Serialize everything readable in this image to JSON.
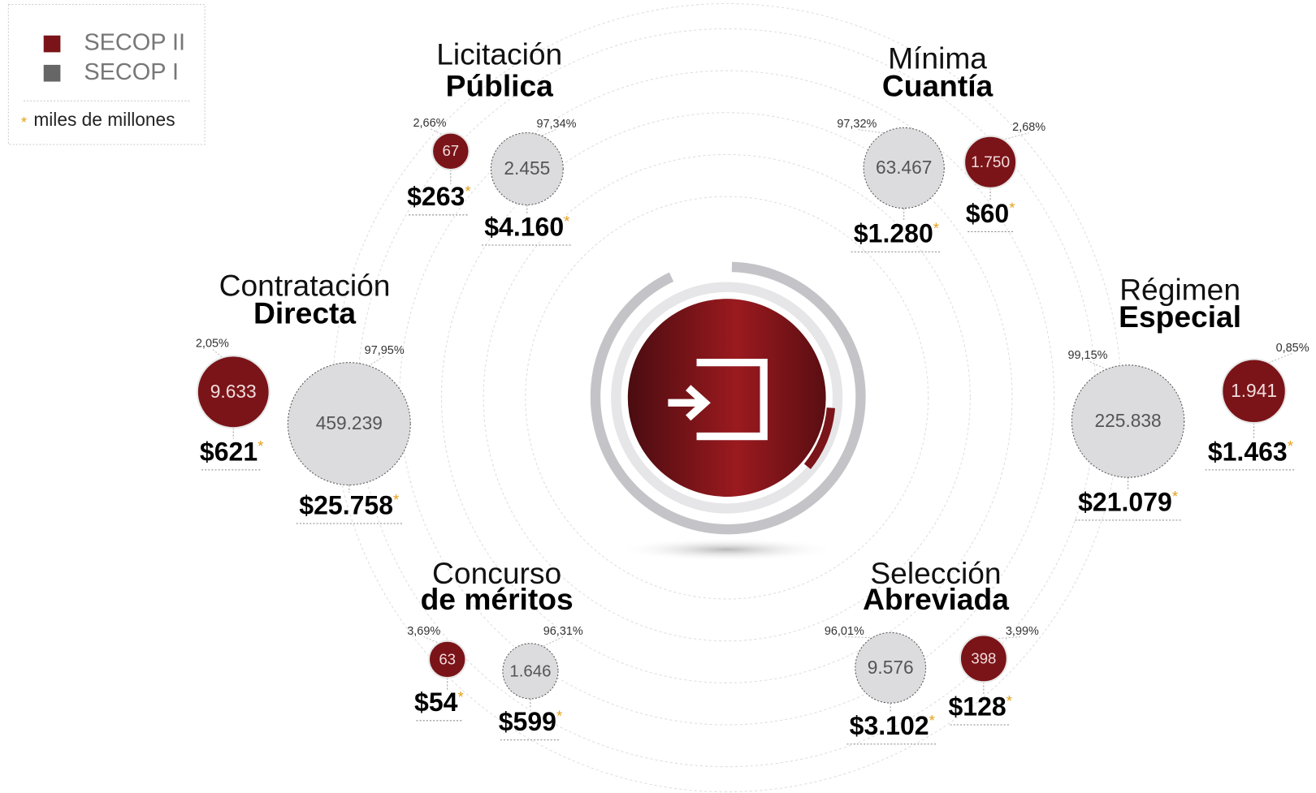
{
  "legend": {
    "items": [
      "SECOP II",
      "SECOP I"
    ],
    "marker": "*",
    "note": "miles de millones"
  },
  "groups": [
    {
      "title_light": "Licitación",
      "title_bold": "Pública",
      "secop2": {
        "pct": "2,66%",
        "count": "67",
        "amount": "$263"
      },
      "secop1": {
        "pct": "97,34%",
        "count": "2.455",
        "amount": "$4.160"
      }
    },
    {
      "title_light": "Mínima",
      "title_bold": "Cuantía",
      "secop2": {
        "pct": "2,68%",
        "count": "1.750",
        "amount": "$60"
      },
      "secop1": {
        "pct": "97,32%",
        "count": "63.467",
        "amount": "$1.280"
      }
    },
    {
      "title_light": "Contratación",
      "title_bold": "Directa",
      "secop2": {
        "pct": "2,05%",
        "count": "9.633",
        "amount": "$621"
      },
      "secop1": {
        "pct": "97,95%",
        "count": "459.239",
        "amount": "$25.758"
      }
    },
    {
      "title_light": "Régimen",
      "title_bold": "Especial",
      "secop2": {
        "pct": "0,85%",
        "count": "1.941",
        "amount": "$1.463"
      },
      "secop1": {
        "pct": "99,15%",
        "count": "225.838",
        "amount": "$21.079"
      }
    },
    {
      "title_light": "Concurso",
      "title_bold": "de méritos",
      "secop2": {
        "pct": "3,69%",
        "count": "63",
        "amount": "$54"
      },
      "secop1": {
        "pct": "96,31%",
        "count": "1.646",
        "amount": "$599"
      }
    },
    {
      "title_light": "Selección",
      "title_bold": "Abreviada",
      "secop2": {
        "pct": "3,99%",
        "count": "398",
        "amount": "$128"
      },
      "secop1": {
        "pct": "96,01%",
        "count": "9.576",
        "amount": "$3.102"
      }
    }
  ]
}
